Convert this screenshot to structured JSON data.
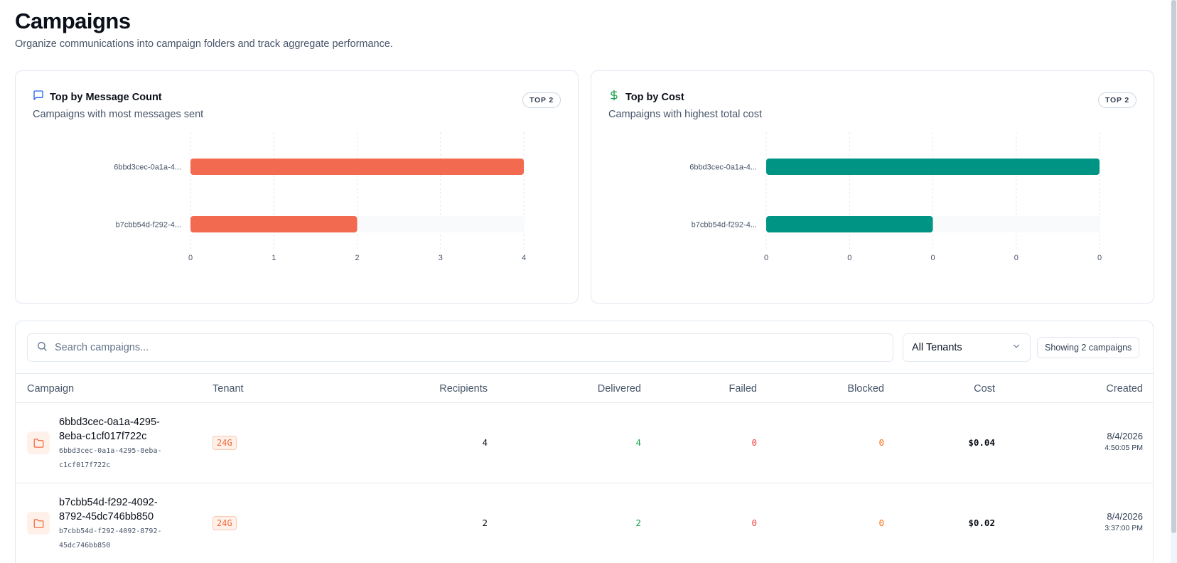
{
  "header": {
    "title": "Campaigns",
    "subtitle": "Organize communications into campaign folders and track aggregate performance."
  },
  "cards": [
    {
      "title": "Top by Message Count",
      "description": "Campaigns with most messages sent",
      "badge": "TOP 2",
      "icon": "message-square-icon",
      "color": "#f26a4f"
    },
    {
      "title": "Top by Cost",
      "description": "Campaigns with highest total cost",
      "badge": "TOP 2",
      "icon": "dollar-icon",
      "color": "#009485"
    }
  ],
  "chart_data": [
    {
      "type": "bar",
      "orientation": "horizontal",
      "categories": [
        "6bbd3cec-0a1a-4...",
        "b7cbb54d-f292-4..."
      ],
      "values": [
        4,
        2
      ],
      "xlim": [
        0,
        4
      ],
      "xticks": [
        "0",
        "1",
        "2",
        "3",
        "4"
      ],
      "grid": true,
      "color": "#f26a4f"
    },
    {
      "type": "bar",
      "orientation": "horizontal",
      "categories": [
        "6bbd3cec-0a1a-4...",
        "b7cbb54d-f292-4..."
      ],
      "values": [
        0.04,
        0.02
      ],
      "xlim": [
        0,
        0.04
      ],
      "xticks": [
        "0",
        "0",
        "0",
        "0",
        "0"
      ],
      "grid": true,
      "color": "#009485"
    }
  ],
  "toolbar": {
    "search_placeholder": "Search campaigns...",
    "tenant_select": "All Tenants",
    "count_label": "Showing 2 campaigns"
  },
  "table": {
    "columns": {
      "campaign": "Campaign",
      "tenant": "Tenant",
      "recipients": "Recipients",
      "delivered": "Delivered",
      "failed": "Failed",
      "blocked": "Blocked",
      "cost": "Cost",
      "created": "Created"
    },
    "rows": [
      {
        "name": "6bbd3cec-0a1a-4295-8eba-c1cf017f722c",
        "id": "6bbd3cec-0a1a-4295-8eba-c1cf017f722c",
        "tenant": "24G",
        "recipients": "4",
        "delivered": "4",
        "failed": "0",
        "blocked": "0",
        "cost": "$0.04",
        "created_date": "8/4/2026",
        "created_time": "4:50:05 PM"
      },
      {
        "name": "b7cbb54d-f292-4092-8792-45dc746bb850",
        "id": "b7cbb54d-f292-4092-8792-45dc746bb850",
        "tenant": "24G",
        "recipients": "2",
        "delivered": "2",
        "failed": "0",
        "blocked": "0",
        "cost": "$0.02",
        "created_date": "8/4/2026",
        "created_time": "3:37:00 PM"
      }
    ]
  }
}
